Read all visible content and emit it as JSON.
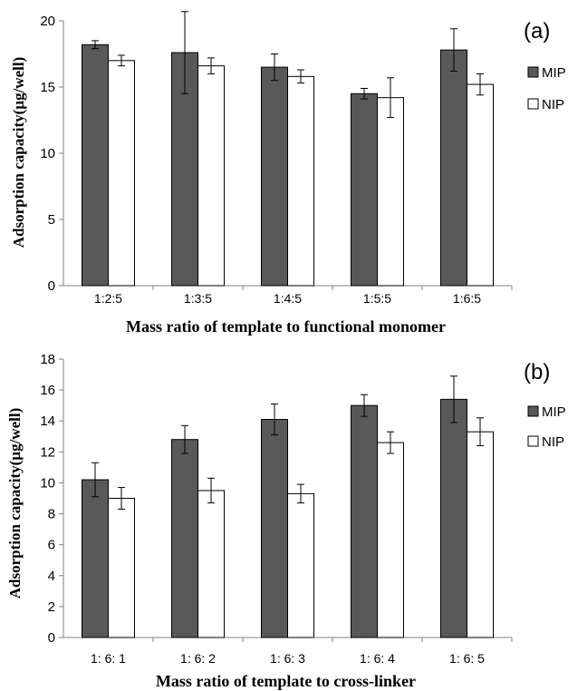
{
  "colors": {
    "mip": "#595959",
    "nip": "#ffffff",
    "bar_stroke": "#000000",
    "axis": "#808080"
  },
  "chart_data": [
    {
      "type": "bar",
      "panel_label": "(a)",
      "ylabel": "Adsorption capacity(µg/well)",
      "xlabel": "Mass ratio of  template to functional monomer",
      "categories": [
        "1:2:5",
        "1:3:5",
        "1:4:5",
        "1:5:5",
        "1:6:5"
      ],
      "ylim": [
        0,
        20
      ],
      "yticks": [
        0,
        5,
        10,
        15,
        20
      ],
      "grid": false,
      "legend_position": "right",
      "series": [
        {
          "name": "MIP",
          "color": "#595959",
          "values": [
            18.2,
            17.6,
            16.5,
            14.5,
            17.8
          ],
          "errors": [
            0.3,
            3.1,
            1.0,
            0.4,
            1.6
          ]
        },
        {
          "name": "NIP",
          "color": "#ffffff",
          "values": [
            17.0,
            16.6,
            15.8,
            14.2,
            15.2
          ],
          "errors": [
            0.4,
            0.6,
            0.5,
            1.5,
            0.8
          ]
        }
      ]
    },
    {
      "type": "bar",
      "panel_label": "(b)",
      "ylabel": "Adsorption capacity(µg/well)",
      "xlabel": "Mass ratio of  template to cross-linker",
      "categories": [
        "1:  6:  1",
        "1:  6:  2",
        "1:  6:  3",
        "1:  6:  4",
        "1:  6:  5"
      ],
      "ylim": [
        0,
        18
      ],
      "yticks": [
        0,
        2,
        4,
        6,
        8,
        10,
        12,
        14,
        16,
        18
      ],
      "grid": false,
      "legend_position": "right",
      "series": [
        {
          "name": "MIP",
          "color": "#595959",
          "values": [
            10.2,
            12.8,
            14.1,
            15.0,
            15.4
          ],
          "errors": [
            1.1,
            0.9,
            1.0,
            0.7,
            1.5
          ]
        },
        {
          "name": "NIP",
          "color": "#ffffff",
          "values": [
            9.0,
            9.5,
            9.3,
            12.6,
            13.3
          ],
          "errors": [
            0.7,
            0.8,
            0.6,
            0.7,
            0.9
          ]
        }
      ]
    }
  ]
}
